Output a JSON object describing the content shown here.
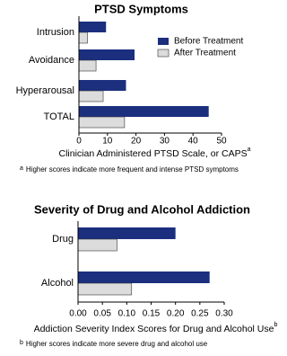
{
  "chart_data": [
    {
      "type": "bar",
      "orientation": "horizontal",
      "title": "PTSD Symptoms",
      "categories": [
        "Intrusion",
        "Avoidance",
        "Hyperarousal",
        "TOTAL"
      ],
      "series": [
        {
          "name": "Before Treatment",
          "color": "#1b2f7e",
          "values": [
            9.5,
            19.5,
            16.5,
            45.5
          ]
        },
        {
          "name": "After Treatment",
          "color": "#dcdcdc",
          "values": [
            3,
            6,
            8.5,
            16
          ]
        }
      ],
      "xlim": [
        0,
        50
      ],
      "xticks": [
        0,
        10,
        20,
        30,
        40,
        50
      ],
      "xlabel": "Clinician Administered PTSD Scale, or CAPS",
      "note_mark": "a",
      "footnote": "Higher scores indicate more frequent and intense PTSD symptoms",
      "legend": "upper right"
    },
    {
      "type": "bar",
      "orientation": "horizontal",
      "title": "Severity of Drug and Alcohol Addiction",
      "categories": [
        "Drug",
        "Alcohol"
      ],
      "series": [
        {
          "color": "#1b2f7e",
          "values": [
            0.2,
            0.27
          ]
        },
        {
          "color": "#dcdcdc",
          "values": [
            0.08,
            0.11
          ]
        }
      ],
      "xlim": [
        0,
        0.3
      ],
      "xticks": [
        {
          "value": 0,
          "label": "0.00"
        },
        {
          "value": 0.05,
          "label": "0.05"
        },
        {
          "value": 0.1,
          "label": "0.10"
        },
        {
          "value": 0.15,
          "label": "0.15"
        },
        {
          "value": 0.2,
          "label": "0.20"
        },
        {
          "value": 0.25,
          "label": "0.25"
        },
        {
          "value": 0.3,
          "label": "0.30"
        }
      ],
      "xlabel": "Addiction Severity Index Scores for Drug and Alcohol Use",
      "note_mark": "b",
      "footnote": "Higher scores indicate more severe drug and alcohol use"
    }
  ]
}
